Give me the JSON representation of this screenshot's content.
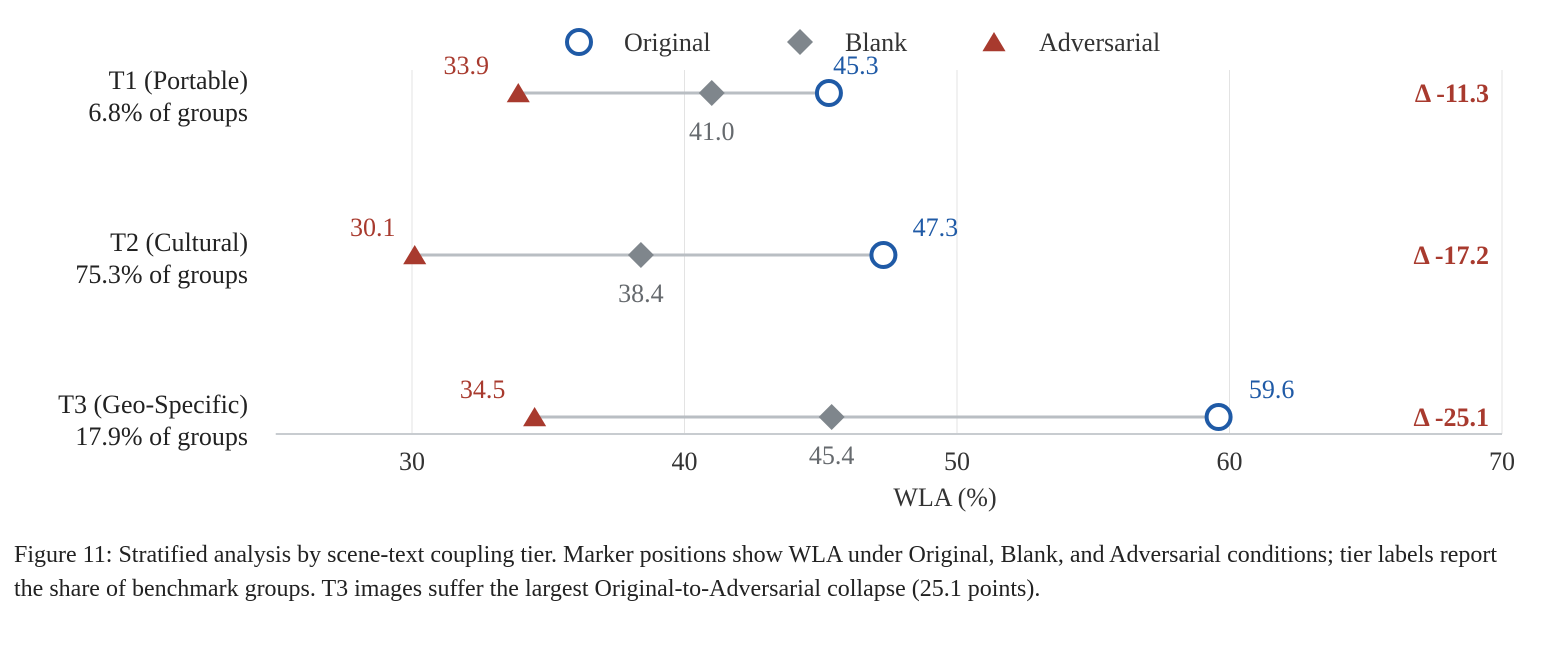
{
  "chart_data": {
    "type": "dot-plot",
    "legend": [
      {
        "name": "Original",
        "color": "#1f5aa6",
        "marker": "open-circle"
      },
      {
        "name": "Blank",
        "color": "#7f868c",
        "marker": "diamond"
      },
      {
        "name": "Adversarial",
        "color": "#a83a2e",
        "marker": "triangle"
      }
    ],
    "legend_position": "top",
    "xlabel": "WLA (%)",
    "xlim": [
      25,
      70
    ],
    "xticks": [
      30,
      40,
      50,
      60,
      70
    ],
    "grid": true,
    "tiers": [
      {
        "name": "T1 (Portable)",
        "share": "6.8% of groups",
        "original": 45.3,
        "blank": 41.0,
        "adversarial": 33.9,
        "delta": "Δ -11.3"
      },
      {
        "name": "T2 (Cultural)",
        "share": "75.3% of groups",
        "original": 47.3,
        "blank": 38.4,
        "adversarial": 30.1,
        "delta": "Δ -17.2"
      },
      {
        "name": "T3 (Geo-Specific)",
        "share": "17.9% of groups",
        "original": 59.6,
        "blank": 45.4,
        "adversarial": 34.5,
        "delta": "Δ -25.1"
      }
    ]
  },
  "caption": "Figure 11: Stratified analysis by scene-text coupling tier. Marker positions show WLA under Original, Blank, and Adversarial conditions; tier labels report the share of benchmark groups. T3 images suffer the largest Original-to-Adversarial collapse (25.1 points)."
}
